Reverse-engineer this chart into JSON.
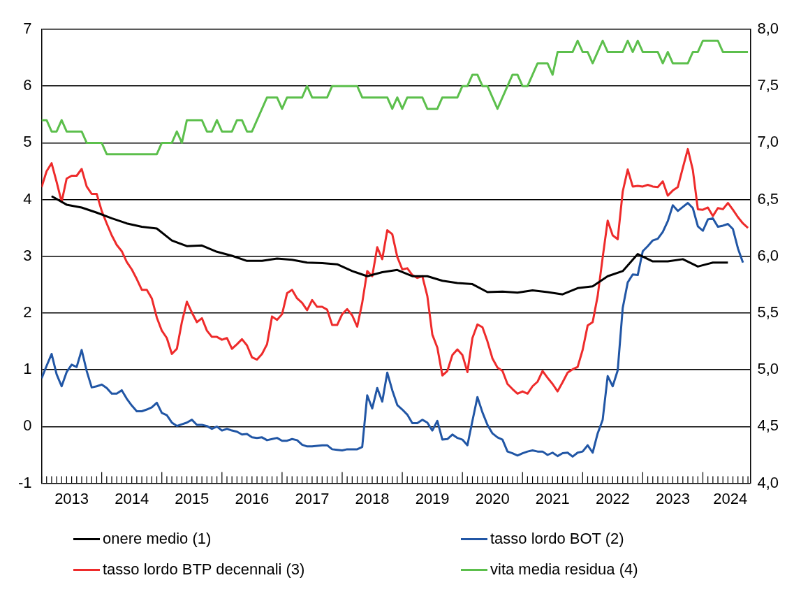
{
  "chart_data": {
    "type": "line",
    "xlim": [
      "2013-01",
      "2024-10-15"
    ],
    "xticks": [
      {
        "value": "2013-07",
        "label": "2013"
      },
      {
        "value": "2014-07",
        "label": "2014"
      },
      {
        "value": "2015-07",
        "label": "2015"
      },
      {
        "value": "2016-07",
        "label": "2016"
      },
      {
        "value": "2017-07",
        "label": "2017"
      },
      {
        "value": "2018-07",
        "label": "2018"
      },
      {
        "value": "2019-07",
        "label": "2019"
      },
      {
        "value": "2020-07",
        "label": "2020"
      },
      {
        "value": "2021-07",
        "label": "2021"
      },
      {
        "value": "2022-07",
        "label": "2022"
      },
      {
        "value": "2023-07",
        "label": "2023"
      },
      {
        "value": "2024-06-15",
        "label": "2024"
      },
      {
        "value": "2014-01",
        "label": null
      },
      {
        "value": "2015-01",
        "label": null
      },
      {
        "value": "2016-01",
        "label": null
      },
      {
        "value": "2017-01",
        "label": null
      },
      {
        "value": "2018-01",
        "label": null
      },
      {
        "value": "2019-01",
        "label": null
      },
      {
        "value": "2020-01",
        "label": null
      },
      {
        "value": "2021-01",
        "label": null
      },
      {
        "value": "2022-01",
        "label": null
      },
      {
        "value": "2023-01",
        "label": null
      },
      {
        "value": "2024-01",
        "label": null
      }
    ],
    "ylim": [
      -1,
      7
    ],
    "yticks": [
      -1,
      0,
      1,
      2,
      3,
      4,
      5,
      6,
      7
    ],
    "y2lim": [
      4,
      8
    ],
    "y2ticks": [
      {
        "value": 4,
        "label": "4,0"
      },
      {
        "value": 4.5,
        "label": "4,5"
      },
      {
        "value": 5,
        "label": "5,0"
      },
      {
        "value": 5.5,
        "label": "5,5"
      },
      {
        "value": 6,
        "label": "6,0"
      },
      {
        "value": 6.5,
        "label": "6,5"
      },
      {
        "value": 7,
        "label": "7,0"
      },
      {
        "value": 7.5,
        "label": "7,5"
      },
      {
        "value": 8,
        "label": "8,0"
      }
    ],
    "grid": "y",
    "legend": "bottom",
    "marker": "none",
    "x": [
      "2013-01",
      "2013-02",
      "2013-03",
      "2013-04",
      "2013-05",
      "2013-06",
      "2013-07",
      "2013-08",
      "2013-09",
      "2013-10",
      "2013-11",
      "2013-12",
      "2014-01",
      "2014-02",
      "2014-03",
      "2014-04",
      "2014-05",
      "2014-06",
      "2014-07",
      "2014-08",
      "2014-09",
      "2014-10",
      "2014-11",
      "2014-12",
      "2015-01",
      "2015-02",
      "2015-03",
      "2015-04",
      "2015-05",
      "2015-06",
      "2015-07",
      "2015-08",
      "2015-09",
      "2015-10",
      "2015-11",
      "2015-12",
      "2016-01",
      "2016-02",
      "2016-03",
      "2016-04",
      "2016-05",
      "2016-06",
      "2016-07",
      "2016-08",
      "2016-09",
      "2016-10",
      "2016-11",
      "2016-12",
      "2017-01",
      "2017-02",
      "2017-03",
      "2017-04",
      "2017-05",
      "2017-06",
      "2017-07",
      "2017-08",
      "2017-09",
      "2017-10",
      "2017-11",
      "2017-12",
      "2018-01",
      "2018-02",
      "2018-03",
      "2018-04",
      "2018-05",
      "2018-06",
      "2018-07",
      "2018-08",
      "2018-09",
      "2018-10",
      "2018-11",
      "2018-12",
      "2019-01",
      "2019-02",
      "2019-03",
      "2019-04",
      "2019-05",
      "2019-06",
      "2019-07",
      "2019-08",
      "2019-09",
      "2019-10",
      "2019-11",
      "2019-12",
      "2020-01",
      "2020-02",
      "2020-03",
      "2020-04",
      "2020-05",
      "2020-06",
      "2020-07",
      "2020-08",
      "2020-09",
      "2020-10",
      "2020-11",
      "2020-12",
      "2021-01",
      "2021-02",
      "2021-03",
      "2021-04",
      "2021-05",
      "2021-06",
      "2021-07",
      "2021-08",
      "2021-09",
      "2021-10",
      "2021-11",
      "2021-12",
      "2022-01",
      "2022-02",
      "2022-03",
      "2022-04",
      "2022-05",
      "2022-06",
      "2022-07",
      "2022-08",
      "2022-09",
      "2022-10",
      "2022-11",
      "2022-12",
      "2023-01",
      "2023-02",
      "2023-03",
      "2023-04",
      "2023-05",
      "2023-06",
      "2023-07",
      "2023-08",
      "2023-09",
      "2023-10",
      "2023-11",
      "2023-12",
      "2024-01",
      "2024-02",
      "2024-03",
      "2024-04",
      "2024-05",
      "2024-06",
      "2024-07",
      "2024-08",
      "2024-09",
      "2024-10"
    ],
    "series": [
      {
        "name": "onere medio (1)",
        "color": "#000000",
        "x": [
          "2013-03",
          "2013-06",
          "2013-09",
          "2013-12",
          "2014-03",
          "2014-06",
          "2014-09",
          "2014-12",
          "2015-03",
          "2015-06",
          "2015-09",
          "2015-12",
          "2016-03",
          "2016-06",
          "2016-09",
          "2016-12",
          "2017-03",
          "2017-06",
          "2017-09",
          "2017-12",
          "2018-03",
          "2018-06",
          "2018-09",
          "2018-12",
          "2019-03",
          "2019-06",
          "2019-09",
          "2019-12",
          "2020-03",
          "2020-06",
          "2020-09",
          "2020-12",
          "2021-03",
          "2021-06",
          "2021-09",
          "2021-12",
          "2022-03",
          "2022-06",
          "2022-09",
          "2022-12",
          "2023-03",
          "2023-06",
          "2023-09",
          "2023-12",
          "2024-03",
          "2024-06"
        ],
        "values": [
          4.06,
          3.91,
          3.86,
          3.77,
          3.67,
          3.58,
          3.52,
          3.49,
          3.28,
          3.18,
          3.19,
          3.08,
          3.01,
          2.92,
          2.92,
          2.96,
          2.94,
          2.89,
          2.88,
          2.86,
          2.74,
          2.65,
          2.72,
          2.76,
          2.65,
          2.65,
          2.57,
          2.53,
          2.51,
          2.37,
          2.38,
          2.36,
          2.4,
          2.37,
          2.33,
          2.44,
          2.47,
          2.65,
          2.74,
          3.04,
          2.91,
          2.91,
          2.95,
          2.82,
          2.89,
          2.89
        ]
      },
      {
        "name": "tasso lordo BOT (2)",
        "color": "#2156a5",
        "values": [
          0.85,
          1.07,
          1.28,
          0.92,
          0.71,
          0.96,
          1.09,
          1.05,
          1.35,
          0.98,
          0.69,
          0.71,
          0.74,
          0.68,
          0.58,
          0.58,
          0.64,
          0.49,
          0.37,
          0.27,
          0.27,
          0.3,
          0.34,
          0.42,
          0.24,
          0.2,
          0.07,
          0.01,
          0.04,
          0.07,
          0.12,
          0.03,
          0.03,
          0.01,
          -0.04,
          0.0,
          -0.07,
          -0.04,
          -0.07,
          -0.09,
          -0.14,
          -0.13,
          -0.19,
          -0.2,
          -0.19,
          -0.24,
          -0.22,
          -0.2,
          -0.25,
          -0.25,
          -0.22,
          -0.24,
          -0.32,
          -0.35,
          -0.35,
          -0.34,
          -0.33,
          -0.33,
          -0.4,
          -0.41,
          -0.42,
          -0.4,
          -0.4,
          -0.4,
          -0.36,
          0.55,
          0.32,
          0.68,
          0.44,
          0.95,
          0.64,
          0.38,
          0.3,
          0.21,
          0.06,
          0.06,
          0.12,
          0.07,
          -0.07,
          0.1,
          -0.23,
          -0.22,
          -0.14,
          -0.2,
          -0.23,
          -0.33,
          0.1,
          0.52,
          0.25,
          0.03,
          -0.12,
          -0.19,
          -0.23,
          -0.44,
          -0.47,
          -0.51,
          -0.47,
          -0.44,
          -0.42,
          -0.44,
          -0.44,
          -0.5,
          -0.46,
          -0.52,
          -0.47,
          -0.46,
          -0.53,
          -0.46,
          -0.44,
          -0.33,
          -0.46,
          -0.12,
          0.12,
          0.89,
          0.71,
          0.99,
          2.09,
          2.54,
          2.68,
          2.67,
          3.09,
          3.18,
          3.28,
          3.31,
          3.43,
          3.62,
          3.9,
          3.8,
          3.87,
          3.94,
          3.85,
          3.53,
          3.45,
          3.65,
          3.67,
          3.52,
          3.54,
          3.57,
          3.48,
          3.14,
          2.89,
          null
        ]
      },
      {
        "name": "tasso lordo BTP decennali (3)",
        "color": "#ee2b2b",
        "values": [
          4.22,
          4.5,
          4.64,
          4.31,
          3.96,
          4.37,
          4.42,
          4.42,
          4.54,
          4.23,
          4.1,
          4.1,
          3.8,
          3.58,
          3.37,
          3.2,
          3.09,
          2.9,
          2.77,
          2.6,
          2.41,
          2.41,
          2.26,
          1.92,
          1.69,
          1.56,
          1.28,
          1.37,
          1.84,
          2.2,
          2.01,
          1.84,
          1.91,
          1.69,
          1.58,
          1.58,
          1.53,
          1.56,
          1.37,
          1.45,
          1.54,
          1.43,
          1.22,
          1.18,
          1.28,
          1.45,
          1.94,
          1.88,
          1.98,
          2.35,
          2.41,
          2.26,
          2.18,
          2.05,
          2.23,
          2.11,
          2.11,
          2.06,
          1.79,
          1.79,
          1.98,
          2.07,
          1.96,
          1.76,
          2.18,
          2.74,
          2.65,
          3.16,
          2.95,
          3.46,
          3.39,
          2.99,
          2.77,
          2.79,
          2.67,
          2.62,
          2.65,
          2.3,
          1.62,
          1.39,
          0.9,
          0.98,
          1.26,
          1.36,
          1.26,
          0.96,
          1.56,
          1.8,
          1.75,
          1.5,
          1.2,
          1.04,
          0.98,
          0.75,
          0.66,
          0.58,
          0.62,
          0.58,
          0.71,
          0.79,
          0.98,
          0.86,
          0.75,
          0.62,
          0.78,
          0.95,
          1.01,
          1.05,
          1.35,
          1.78,
          1.84,
          2.3,
          2.98,
          3.63,
          3.37,
          3.3,
          4.14,
          4.53,
          4.23,
          4.24,
          4.23,
          4.26,
          4.23,
          4.22,
          4.32,
          4.07,
          4.16,
          4.22,
          4.56,
          4.89,
          4.52,
          3.83,
          3.82,
          3.86,
          3.71,
          3.85,
          3.83,
          3.94,
          3.82,
          3.69,
          3.58,
          3.5
        ]
      },
      {
        "name": "vita media residua (4)",
        "color": "#5cbf4c",
        "axis": "y2",
        "x": [
          "2013-01",
          "2013-02",
          "2013-03",
          "2013-04",
          "2013-05",
          "2013-06",
          "2013-09",
          "2013-10",
          "2014-01",
          "2014-02",
          "2014-12",
          "2015-01",
          "2015-03",
          "2015-04",
          "2015-05",
          "2015-06",
          "2015-09",
          "2015-10",
          "2015-11",
          "2015-12",
          "2016-01",
          "2016-03",
          "2016-04",
          "2016-05",
          "2016-06",
          "2016-07",
          "2016-10",
          "2016-12",
          "2017-01",
          "2017-02",
          "2017-05",
          "2017-06",
          "2017-07",
          "2017-10",
          "2017-11",
          "2018-04",
          "2018-05",
          "2018-10",
          "2018-11",
          "2018-12",
          "2019-01",
          "2019-02",
          "2019-05",
          "2019-06",
          "2019-08",
          "2019-09",
          "2019-12",
          "2020-01",
          "2020-02",
          "2020-03",
          "2020-04",
          "2020-05",
          "2020-06",
          "2020-08",
          "2020-11",
          "2020-12",
          "2021-01",
          "2021-02",
          "2021-04",
          "2021-06",
          "2021-07",
          "2021-08",
          "2021-11",
          "2021-12",
          "2022-01",
          "2022-02",
          "2022-03",
          "2022-05",
          "2022-06",
          "2022-09",
          "2022-10",
          "2022-11",
          "2022-12",
          "2023-01",
          "2023-04",
          "2023-05",
          "2023-06",
          "2023-07",
          "2023-10",
          "2023-11",
          "2023-12",
          "2024-01",
          "2024-04",
          "2024-05",
          "2024-10"
        ],
        "values": [
          7.2,
          7.2,
          7.1,
          7.1,
          7.2,
          7.1,
          7.1,
          7.0,
          7.0,
          6.9,
          6.9,
          7.0,
          7.0,
          7.1,
          7.0,
          7.2,
          7.2,
          7.1,
          7.1,
          7.2,
          7.1,
          7.1,
          7.2,
          7.2,
          7.1,
          7.1,
          7.4,
          7.4,
          7.3,
          7.4,
          7.4,
          7.5,
          7.4,
          7.4,
          7.5,
          7.5,
          7.4,
          7.4,
          7.3,
          7.4,
          7.3,
          7.4,
          7.4,
          7.3,
          7.3,
          7.4,
          7.4,
          7.5,
          7.5,
          7.6,
          7.6,
          7.5,
          7.5,
          7.3,
          7.6,
          7.6,
          7.5,
          7.5,
          7.7,
          7.7,
          7.6,
          7.8,
          7.8,
          7.9,
          7.8,
          7.8,
          7.7,
          7.9,
          7.8,
          7.8,
          7.9,
          7.8,
          7.9,
          7.8,
          7.8,
          7.7,
          7.8,
          7.7,
          7.7,
          7.8,
          7.8,
          7.9,
          7.9,
          7.8,
          7.8
        ]
      }
    ]
  }
}
